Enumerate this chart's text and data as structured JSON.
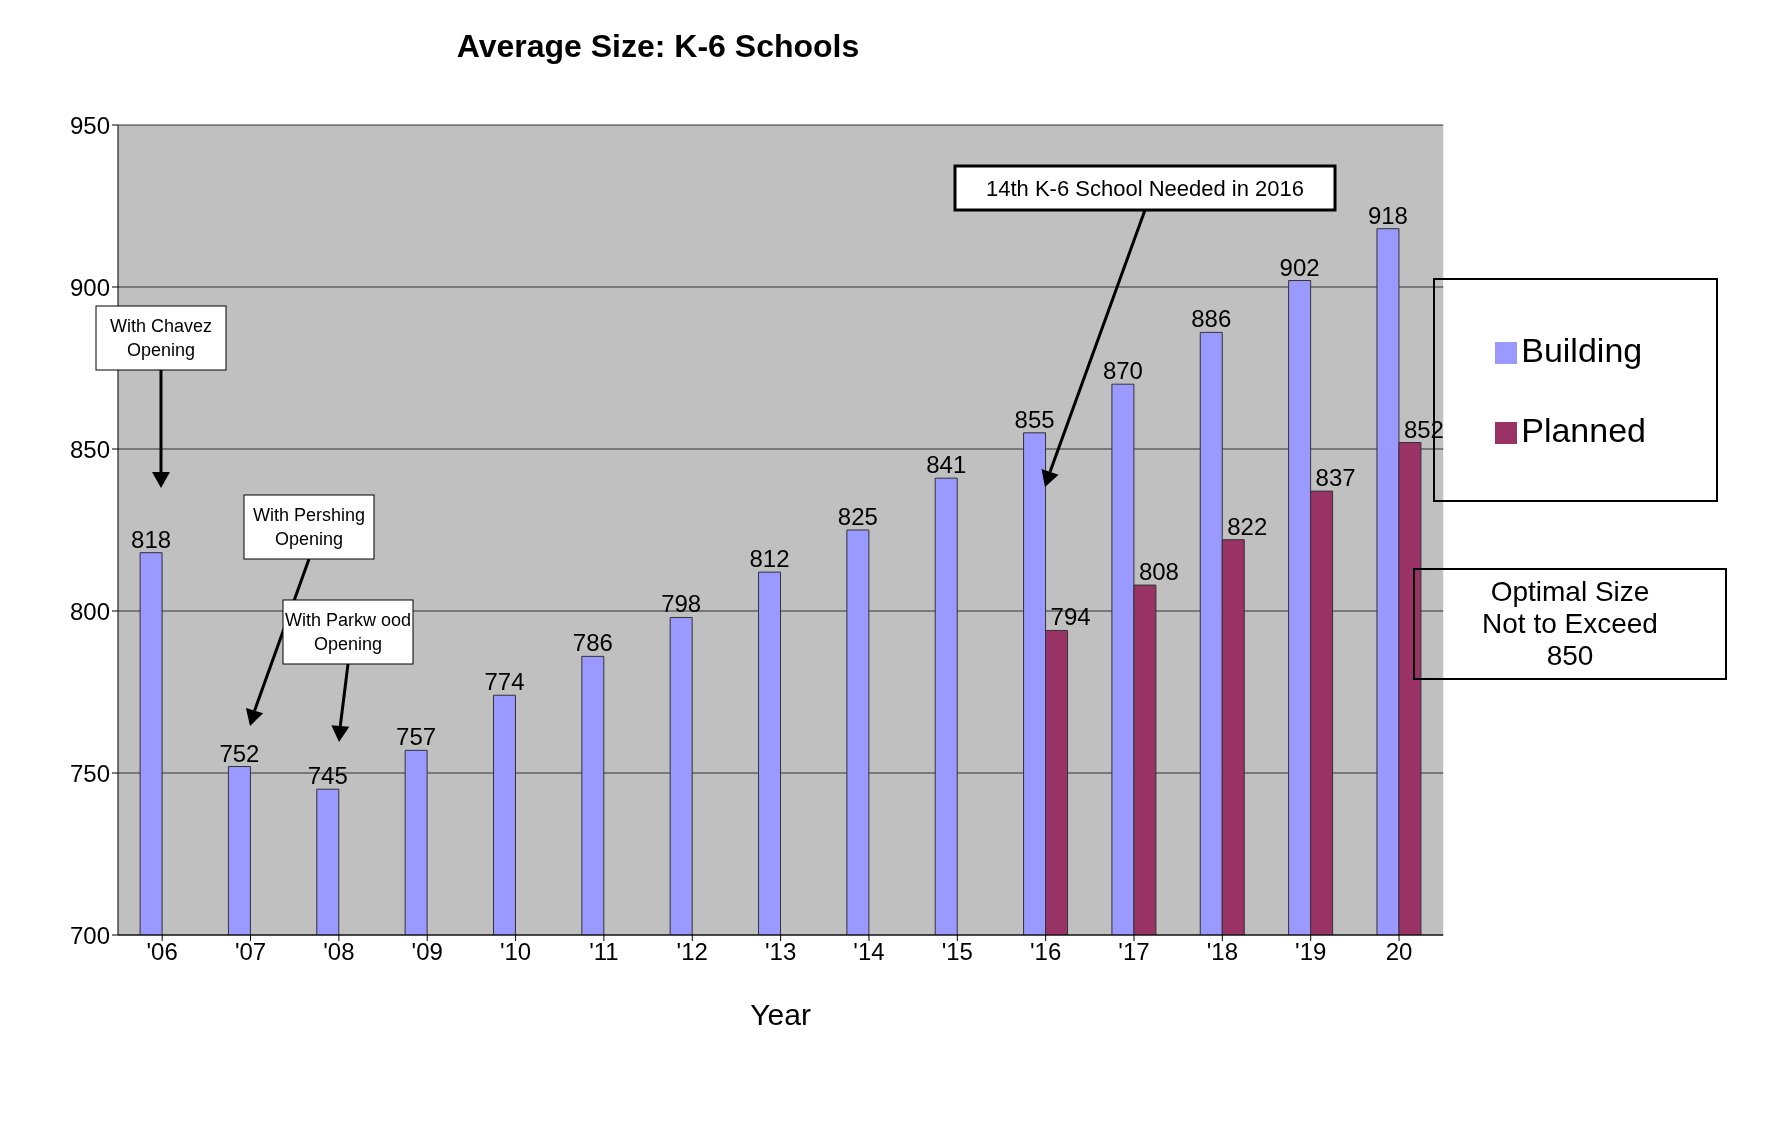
{
  "chart_data": {
    "type": "bar",
    "title": "Average Size: K-6 Schools",
    "xlabel": "Year",
    "categories": [
      "'06",
      "'07",
      "'08",
      "'09",
      "'10",
      "'11",
      "'12",
      "'13",
      "'14",
      "'15",
      "'16",
      "'17",
      "'18",
      "'19",
      "20"
    ],
    "series": [
      {
        "name": "Building",
        "color": "#9999ff",
        "values": [
          818,
          752,
          745,
          757,
          774,
          786,
          798,
          812,
          825,
          841,
          855,
          870,
          886,
          902,
          918
        ]
      },
      {
        "name": "Planned",
        "color": "#993366",
        "values": [
          null,
          null,
          null,
          null,
          null,
          null,
          null,
          null,
          null,
          null,
          794,
          808,
          822,
          837,
          852
        ]
      }
    ],
    "ylim": [
      700,
      950
    ],
    "yticks": [
      700,
      750,
      800,
      850,
      900,
      950
    ],
    "grid": "y",
    "legend": "right",
    "data_labels": true,
    "annotations": [
      "With Chavez Opening",
      "With Pershing Opening",
      "With Parkw ood Opening",
      "14th K-6 School Needed in 2016",
      "Optimal Size Not to Exceed 850"
    ]
  }
}
